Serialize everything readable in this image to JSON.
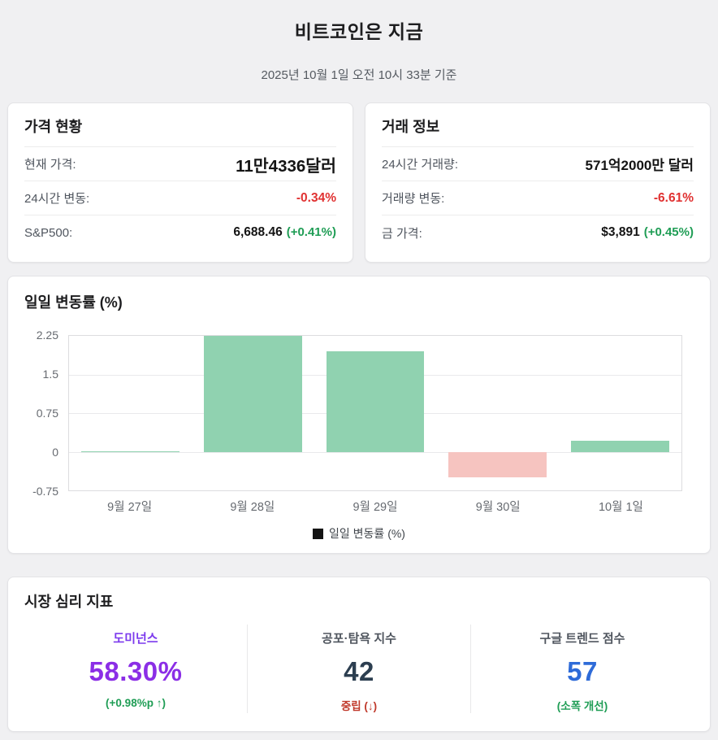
{
  "header": {
    "title": "비트코인은 지금",
    "timestamp": "2025년 10월 1일 오전 10시 33분 기준"
  },
  "price_card": {
    "title": "가격 현황",
    "rows": [
      {
        "label": "현재 가격:",
        "value": "11만4336달러",
        "change": ""
      },
      {
        "label": "24시간 변동:",
        "value": "-0.34%",
        "change": ""
      },
      {
        "label": "S&P500:",
        "value": "6,688.46",
        "change": "(+0.41%)"
      }
    ]
  },
  "trade_card": {
    "title": "거래 정보",
    "rows": [
      {
        "label": "24시간 거래량:",
        "value": "571억2000만 달러",
        "change": ""
      },
      {
        "label": "거래량 변동:",
        "value": "-6.61%",
        "change": ""
      },
      {
        "label": "금 가격:",
        "value": "$3,891",
        "change": "(+0.45%)"
      }
    ]
  },
  "chart_card": {
    "title": "일일 변동률 (%)",
    "legend": "일일 변동률 (%)"
  },
  "chart_data": {
    "type": "bar",
    "title": "일일 변동률 (%)",
    "categories": [
      "9월 27일",
      "9월 28일",
      "9월 29일",
      "9월 30일",
      "10월 1일"
    ],
    "values": [
      0.01,
      2.25,
      1.95,
      -0.5,
      0.22
    ],
    "xlabel": "",
    "ylabel": "",
    "ylim": [
      -0.75,
      2.25
    ],
    "yticks": [
      2.25,
      1.5,
      0.75,
      0,
      -0.75
    ],
    "grid": true,
    "legend_position": "bottom",
    "legend_entries": [
      "일일 변동률 (%)"
    ],
    "positive_color": "#90d2b0",
    "negative_color": "#f6c4c0",
    "legend_swatch_color": "#141414"
  },
  "sentiment_card": {
    "title": "시장 심리 지표",
    "metrics": [
      {
        "label": "도미넌스",
        "value": "58.30%",
        "sub": "(+0.98%p ↑)",
        "label_color": "#7c3aed",
        "value_color": "#8b2ee6",
        "sub_color": "#1f9d55"
      },
      {
        "label": "공포·탐욕 지수",
        "value": "42",
        "sub": "중립 (↓)",
        "label_color": "#4f555e",
        "value_color": "#2c3e50",
        "sub_color": "#c0392b"
      },
      {
        "label": "구글 트렌드 점수",
        "value": "57",
        "sub": "(소폭 개선)",
        "label_color": "#4f555e",
        "value_color": "#2e6bd8",
        "sub_color": "#1f9d55"
      }
    ]
  },
  "colors": {
    "background": "#f0f0f2",
    "card_background": "#ffffff",
    "negative": "#e03131",
    "positive": "#1f9d55",
    "bar_positive": "#90d2b0",
    "bar_negative": "#f6c4c0",
    "dominance_accent": "#8b2ee6",
    "trend_accent": "#2e6bd8"
  }
}
